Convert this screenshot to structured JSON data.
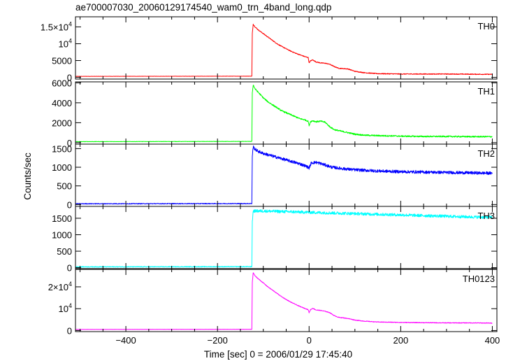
{
  "chart_data": {
    "type": "line",
    "title": "ae700007030_20060129174540_wam0_trn_4band_long.qdp",
    "xlabel": "Time [sec] 0 = 2006/01/29 17:45:40",
    "ylabel": "Counts/sec",
    "xlim": [
      -510,
      410
    ],
    "x_ticks": [
      {
        "value": -400,
        "label": "−400"
      },
      {
        "value": -200,
        "label": "−200"
      },
      {
        "value": 0,
        "label": "0"
      },
      {
        "value": 200,
        "label": "200"
      },
      {
        "value": 400,
        "label": "400"
      }
    ],
    "panels": [
      {
        "label": "TH0",
        "color": "#ff0000",
        "ylim": [
          -500,
          18000
        ],
        "y_ticks": [
          {
            "value": 0,
            "label": "0"
          },
          {
            "value": 5000,
            "label": "5000"
          },
          {
            "value": 10000,
            "label": "10",
            "exp": "4"
          },
          {
            "value": 15000,
            "label": "1.5×10",
            "exp": "4"
          }
        ],
        "series": {
          "x": [
            -510,
            -125,
            -124,
            -122,
            -118,
            -110,
            -100,
            -90,
            -80,
            -70,
            -60,
            -50,
            -40,
            -30,
            -20,
            -10,
            -5,
            -2,
            0,
            3,
            8,
            15,
            25,
            35,
            45,
            55,
            65,
            75,
            85,
            100,
            120,
            150,
            180,
            200,
            250,
            300,
            350,
            400
          ],
          "y": [
            300,
            350,
            13000,
            15800,
            15000,
            14000,
            13000,
            12000,
            11000,
            10000,
            9200,
            8500,
            7800,
            7200,
            6700,
            6200,
            6000,
            5900,
            4300,
            4900,
            5200,
            4600,
            4300,
            4200,
            3900,
            3200,
            2700,
            2600,
            2500,
            1800,
            1400,
            1100,
            1050,
            1000,
            1000,
            1000,
            950,
            900
          ],
          "noise": 120
        }
      },
      {
        "label": "TH1",
        "color": "#00ff00",
        "ylim": [
          -150,
          6100
        ],
        "y_ticks": [
          {
            "value": 0,
            "label": "0"
          },
          {
            "value": 2000,
            "label": "2000"
          },
          {
            "value": 4000,
            "label": "4000"
          },
          {
            "value": 6000,
            "label": "6000"
          }
        ],
        "series": {
          "x": [
            -510,
            -125,
            -124,
            -122,
            -118,
            -110,
            -100,
            -90,
            -80,
            -70,
            -60,
            -50,
            -40,
            -30,
            -20,
            -10,
            -5,
            -2,
            0,
            3,
            8,
            15,
            25,
            35,
            45,
            55,
            65,
            75,
            85,
            100,
            120,
            150,
            180,
            200,
            250,
            300,
            350,
            400
          ],
          "y": [
            100,
            120,
            5000,
            5800,
            5400,
            5000,
            4500,
            4100,
            3800,
            3500,
            3200,
            3000,
            2800,
            2600,
            2400,
            2300,
            2200,
            2150,
            1700,
            2100,
            2200,
            2100,
            2150,
            2050,
            1600,
            1300,
            1200,
            1100,
            1000,
            850,
            750,
            700,
            680,
            650,
            620,
            620,
            600,
            600
          ],
          "noise": 70
        }
      },
      {
        "label": "TH2",
        "color": "#0000ff",
        "ylim": [
          -50,
          1620
        ],
        "y_ticks": [
          {
            "value": 0,
            "label": "0"
          },
          {
            "value": 500,
            "label": "500"
          },
          {
            "value": 1000,
            "label": "1000"
          },
          {
            "value": 1500,
            "label": "1500"
          }
        ],
        "series": {
          "x": [
            -510,
            -125,
            -124,
            -122,
            -118,
            -110,
            -100,
            -80,
            -60,
            -40,
            -20,
            -5,
            0,
            5,
            15,
            25,
            35,
            50,
            75,
            100,
            150,
            200,
            250,
            300,
            350,
            400
          ],
          "y": [
            20,
            25,
            1300,
            1550,
            1480,
            1420,
            1370,
            1300,
            1230,
            1160,
            1090,
            1020,
            980,
            1120,
            1130,
            1100,
            1060,
            1000,
            960,
            930,
            900,
            880,
            870,
            860,
            850,
            840
          ],
          "noise": 40
        }
      },
      {
        "label": "TH3",
        "color": "#00ffff",
        "ylim": [
          -30,
          1860
        ],
        "y_ticks": [
          {
            "value": 0,
            "label": "0"
          },
          {
            "value": 500,
            "label": "500"
          },
          {
            "value": 1000,
            "label": "1000"
          },
          {
            "value": 1500,
            "label": "1500"
          }
        ],
        "series": {
          "x": [
            -510,
            -125,
            -124,
            -122,
            -100,
            -50,
            0,
            50,
            100,
            150,
            200,
            250,
            300,
            350,
            400
          ],
          "y": [
            25,
            30,
            1400,
            1720,
            1720,
            1700,
            1680,
            1660,
            1640,
            1620,
            1600,
            1580,
            1560,
            1540,
            1530
          ],
          "noise": 45
        }
      },
      {
        "label": "TH0123",
        "color": "#ff00ff",
        "ylim": [
          -500,
          28000
        ],
        "y_ticks": [
          {
            "value": 0,
            "label": "0"
          },
          {
            "value": 10000,
            "label": "10",
            "exp": "4"
          },
          {
            "value": 20000,
            "label": "2×10",
            "exp": "4"
          }
        ],
        "series": {
          "x": [
            -510,
            -125,
            -124,
            -122,
            -118,
            -110,
            -100,
            -90,
            -80,
            -70,
            -60,
            -50,
            -40,
            -30,
            -20,
            -10,
            -5,
            -2,
            0,
            3,
            8,
            15,
            25,
            35,
            45,
            55,
            65,
            75,
            85,
            100,
            120,
            150,
            180,
            200,
            250,
            300,
            350,
            400
          ],
          "y": [
            500,
            550,
            22000,
            26500,
            25000,
            23500,
            21800,
            20000,
            18500,
            17000,
            15500,
            14200,
            13000,
            12000,
            11000,
            10200,
            9800,
            9500,
            8200,
            9500,
            10200,
            9400,
            9200,
            8800,
            8200,
            6800,
            6000,
            5800,
            5500,
            4800,
            4300,
            3900,
            3800,
            3700,
            3600,
            3500,
            3500,
            3400
          ],
          "noise": 150
        }
      }
    ]
  }
}
